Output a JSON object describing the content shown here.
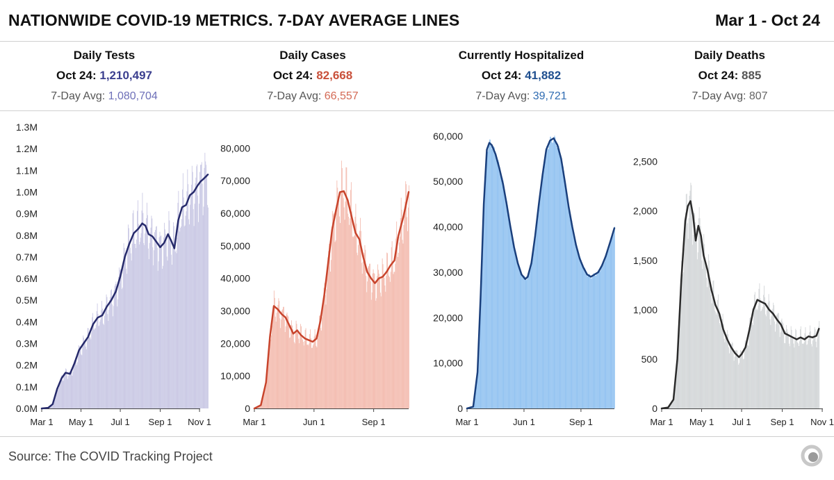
{
  "header": {
    "title": "NATIONWIDE COVID-19 METRICS. 7-DAY AVERAGE LINES",
    "date_range": "Mar 1 - Oct 24"
  },
  "panels": [
    {
      "name": "Daily Tests",
      "latest_label": "Oct 24:",
      "latest_value": "1,210,497",
      "avg_label": "7-Day Avg:",
      "avg_value": "1,080,704",
      "color": "#3b3f8f",
      "light_color": "#6d6fb8"
    },
    {
      "name": "Daily Cases",
      "latest_label": "Oct 24:",
      "latest_value": "82,668",
      "avg_label": "7-Day Avg:",
      "avg_value": "66,557",
      "color": "#c9503a",
      "light_color": "#d46a55"
    },
    {
      "name": "Currently Hospitalized",
      "latest_label": "Oct 24:",
      "latest_value": "41,882",
      "avg_label": "7-Day Avg:",
      "avg_value": "39,721",
      "color": "#1f4f8f",
      "light_color": "#2f6cb2"
    },
    {
      "name": "Daily Deaths",
      "latest_label": "Oct 24:",
      "latest_value": "885",
      "avg_label": "7-Day Avg:",
      "avg_value": "807",
      "color": "#555555",
      "light_color": "#666666"
    }
  ],
  "chart_data": [
    {
      "type": "bar",
      "title": "Daily Tests",
      "series": [
        {
          "name": "7-day average",
          "type": "line"
        }
      ],
      "ylim": [
        0,
        1300000
      ],
      "y_ticks": [
        0,
        100000,
        200000,
        300000,
        400000,
        500000,
        600000,
        700000,
        800000,
        900000,
        1000000,
        1100000,
        1200000,
        1300000
      ],
      "y_tick_labels": [
        "0.0M",
        "0.1M",
        "0.2M",
        "0.3M",
        "0.4M",
        "0.5M",
        "0.6M",
        "0.7M",
        "0.8M",
        "0.9M",
        "1.0M",
        "1.1M",
        "1.2M",
        "1.3M"
      ],
      "xlim": [
        0,
        246
      ],
      "x_ticks": [
        0,
        61,
        122,
        184,
        245
      ],
      "x_tick_labels": [
        "Mar 1",
        "May 1",
        "Jul 1",
        "Sep 1",
        "Nov 1"
      ],
      "avg_points": [
        [
          0,
          0
        ],
        [
          10,
          3000
        ],
        [
          17,
          20000
        ],
        [
          24,
          90000
        ],
        [
          31,
          140000
        ],
        [
          37,
          165000
        ],
        [
          44,
          160000
        ],
        [
          51,
          210000
        ],
        [
          58,
          270000
        ],
        [
          65,
          300000
        ],
        [
          72,
          330000
        ],
        [
          80,
          390000
        ],
        [
          87,
          420000
        ],
        [
          94,
          430000
        ],
        [
          101,
          470000
        ],
        [
          108,
          500000
        ],
        [
          115,
          540000
        ],
        [
          122,
          610000
        ],
        [
          129,
          700000
        ],
        [
          136,
          760000
        ],
        [
          143,
          810000
        ],
        [
          150,
          830000
        ],
        [
          156,
          855000
        ],
        [
          161,
          845000
        ],
        [
          166,
          805000
        ],
        [
          172,
          795000
        ],
        [
          178,
          770000
        ],
        [
          184,
          745000
        ],
        [
          190,
          765000
        ],
        [
          196,
          805000
        ],
        [
          201,
          775000
        ],
        [
          206,
          740000
        ],
        [
          212,
          870000
        ],
        [
          218,
          930000
        ],
        [
          224,
          940000
        ],
        [
          230,
          985000
        ],
        [
          236,
          1000000
        ],
        [
          242,
          1030000
        ],
        [
          247,
          1050000
        ],
        [
          251,
          1060000
        ],
        [
          258,
          1080704
        ]
      ]
    },
    {
      "type": "bar",
      "title": "Daily Cases",
      "series": [
        {
          "name": "7-day average",
          "type": "line"
        }
      ],
      "ylim": [
        0,
        85000
      ],
      "y_ticks": [
        0,
        10000,
        20000,
        30000,
        40000,
        50000,
        60000,
        70000,
        80000
      ],
      "y_tick_labels": [
        "0",
        "10,000",
        "20,000",
        "30,000",
        "40,000",
        "50,000",
        "60,000",
        "70,000",
        "80,000"
      ],
      "xlim": [
        0,
        238
      ],
      "x_ticks": [
        0,
        92,
        184
      ],
      "x_tick_labels": [
        "Mar 1",
        "Jun 1",
        "Sep 1"
      ],
      "avg_points": [
        [
          0,
          0
        ],
        [
          10,
          1000
        ],
        [
          18,
          8000
        ],
        [
          24,
          22000
        ],
        [
          30,
          31500
        ],
        [
          36,
          30500
        ],
        [
          42,
          29000
        ],
        [
          48,
          28000
        ],
        [
          54,
          25500
        ],
        [
          60,
          23000
        ],
        [
          66,
          24000
        ],
        [
          72,
          22500
        ],
        [
          78,
          21500
        ],
        [
          84,
          21000
        ],
        [
          90,
          20500
        ],
        [
          96,
          21500
        ],
        [
          102,
          27000
        ],
        [
          108,
          35000
        ],
        [
          114,
          45000
        ],
        [
          120,
          55000
        ],
        [
          126,
          61000
        ],
        [
          132,
          66500
        ],
        [
          138,
          66800
        ],
        [
          144,
          64000
        ],
        [
          150,
          59000
        ],
        [
          156,
          54000
        ],
        [
          162,
          52000
        ],
        [
          168,
          46500
        ],
        [
          174,
          42000
        ],
        [
          180,
          40000
        ],
        [
          186,
          38500
        ],
        [
          192,
          40000
        ],
        [
          198,
          40500
        ],
        [
          204,
          42000
        ],
        [
          210,
          44000
        ],
        [
          216,
          45500
        ],
        [
          222,
          53000
        ],
        [
          230,
          59000
        ],
        [
          238,
          66557
        ]
      ]
    },
    {
      "type": "bar",
      "title": "Currently Hospitalized",
      "series": [
        {
          "name": "7-day average",
          "type": "line"
        }
      ],
      "ylim": [
        0,
        61500
      ],
      "y_ticks": [
        0,
        10000,
        20000,
        30000,
        40000,
        50000,
        60000
      ],
      "y_tick_labels": [
        "0",
        "10,000",
        "20,000",
        "30,000",
        "40,000",
        "50,000",
        "60,000"
      ],
      "xlim": [
        0,
        238
      ],
      "x_ticks": [
        0,
        92,
        184
      ],
      "x_tick_labels": [
        "Mar 1",
        "Jun 1",
        "Sep 1"
      ],
      "avg_points": [
        [
          0,
          0
        ],
        [
          10,
          400
        ],
        [
          17,
          8000
        ],
        [
          22,
          25000
        ],
        [
          27,
          45000
        ],
        [
          32,
          57000
        ],
        [
          36,
          58500
        ],
        [
          40,
          58000
        ],
        [
          46,
          56000
        ],
        [
          52,
          53000
        ],
        [
          58,
          49500
        ],
        [
          64,
          45000
        ],
        [
          70,
          40000
        ],
        [
          76,
          35500
        ],
        [
          82,
          32000
        ],
        [
          88,
          29500
        ],
        [
          94,
          28500
        ],
        [
          98,
          29000
        ],
        [
          104,
          32000
        ],
        [
          110,
          38000
        ],
        [
          116,
          45000
        ],
        [
          122,
          51500
        ],
        [
          128,
          57000
        ],
        [
          134,
          59000
        ],
        [
          140,
          59500
        ],
        [
          146,
          58000
        ],
        [
          152,
          55000
        ],
        [
          158,
          50000
        ],
        [
          164,
          44500
        ],
        [
          170,
          40000
        ],
        [
          176,
          36000
        ],
        [
          182,
          33000
        ],
        [
          188,
          31000
        ],
        [
          194,
          29500
        ],
        [
          200,
          29000
        ],
        [
          206,
          29500
        ],
        [
          212,
          30000
        ],
        [
          218,
          31500
        ],
        [
          224,
          33500
        ],
        [
          232,
          37000
        ],
        [
          238,
          39721
        ]
      ]
    },
    {
      "type": "bar",
      "title": "Daily Deaths",
      "series": [
        {
          "name": "7-day average",
          "type": "line"
        }
      ],
      "ylim": [
        0,
        2800
      ],
      "y_ticks": [
        0,
        500,
        1000,
        1500,
        2000,
        2500
      ],
      "y_tick_labels": [
        "0",
        "500",
        "1,000",
        "1,500",
        "2,000",
        "2,500"
      ],
      "xlim": [
        0,
        246
      ],
      "x_ticks": [
        0,
        61,
        122,
        184,
        245
      ],
      "x_tick_labels": [
        "Mar 1",
        "May 1",
        "Jul 1",
        "Sep 1",
        "Nov 1"
      ],
      "avg_points": [
        [
          0,
          0
        ],
        [
          10,
          10
        ],
        [
          18,
          90
        ],
        [
          24,
          500
        ],
        [
          30,
          1300
        ],
        [
          36,
          1900
        ],
        [
          40,
          2050
        ],
        [
          44,
          2100
        ],
        [
          48,
          1950
        ],
        [
          52,
          1700
        ],
        [
          56,
          1850
        ],
        [
          60,
          1750
        ],
        [
          64,
          1550
        ],
        [
          70,
          1400
        ],
        [
          76,
          1200
        ],
        [
          82,
          1050
        ],
        [
          88,
          960
        ],
        [
          94,
          800
        ],
        [
          100,
          700
        ],
        [
          106,
          620
        ],
        [
          112,
          560
        ],
        [
          118,
          520
        ],
        [
          122,
          550
        ],
        [
          128,
          620
        ],
        [
          134,
          800
        ],
        [
          140,
          1000
        ],
        [
          146,
          1100
        ],
        [
          152,
          1080
        ],
        [
          158,
          1060
        ],
        [
          164,
          1000
        ],
        [
          170,
          960
        ],
        [
          176,
          900
        ],
        [
          182,
          850
        ],
        [
          188,
          760
        ],
        [
          194,
          740
        ],
        [
          200,
          720
        ],
        [
          206,
          700
        ],
        [
          212,
          720
        ],
        [
          218,
          700
        ],
        [
          224,
          730
        ],
        [
          230,
          720
        ],
        [
          236,
          735
        ],
        [
          240,
          807
        ]
      ]
    }
  ],
  "source": "Source: The COVID Tracking Project",
  "icons": {
    "logo": "covid-tracking-project-logo"
  }
}
